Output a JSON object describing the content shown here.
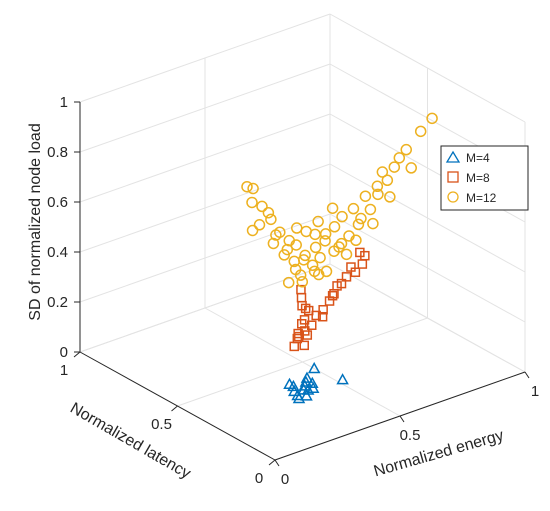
{
  "chart_data": {
    "type": "scatter",
    "xlabel": "Normalized energy",
    "ylabel": "Normalized latency",
    "zlabel": "SD of normalized node load",
    "xlim": [
      0,
      1
    ],
    "ylim": [
      0,
      1
    ],
    "zlim": [
      0,
      1
    ],
    "ticks": {
      "x": [
        "0",
        "0.5",
        "1"
      ],
      "y": [
        "0",
        "0.5",
        "1"
      ],
      "z": [
        "0",
        "0.2",
        "0.4",
        "0.6",
        "0.8",
        "1"
      ]
    },
    "grid": true,
    "legend_position": "right",
    "series": [
      {
        "name": "M=4",
        "marker": "triangle",
        "color": "#0072BD",
        "points": [
          [
            0.35,
            0.35,
            0.0
          ],
          [
            0.37,
            0.38,
            0.0
          ],
          [
            0.4,
            0.36,
            0.0
          ],
          [
            0.34,
            0.32,
            0.0
          ],
          [
            0.33,
            0.3,
            0.0
          ],
          [
            0.41,
            0.33,
            0.0
          ],
          [
            0.37,
            0.4,
            0.0
          ],
          [
            0.43,
            0.36,
            0.0
          ],
          [
            0.36,
            0.3,
            0.0
          ],
          [
            0.39,
            0.33,
            0.0
          ],
          [
            0.42,
            0.38,
            0.0
          ],
          [
            0.44,
            0.4,
            0.0
          ],
          [
            0.5,
            0.44,
            0.0
          ],
          [
            0.52,
            0.32,
            0.0
          ],
          [
            0.38,
            0.34,
            0.0
          ]
        ]
      },
      {
        "name": "M=8",
        "marker": "square",
        "color": "#D95319",
        "points": [
          [
            0.35,
            0.35,
            0.18
          ],
          [
            0.37,
            0.36,
            0.2
          ],
          [
            0.4,
            0.36,
            0.22
          ],
          [
            0.35,
            0.33,
            0.24
          ],
          [
            0.38,
            0.35,
            0.26
          ],
          [
            0.42,
            0.35,
            0.24
          ],
          [
            0.36,
            0.31,
            0.3
          ],
          [
            0.38,
            0.33,
            0.33
          ],
          [
            0.4,
            0.34,
            0.31
          ],
          [
            0.43,
            0.34,
            0.28
          ],
          [
            0.45,
            0.33,
            0.3
          ],
          [
            0.46,
            0.31,
            0.34
          ],
          [
            0.47,
            0.3,
            0.37
          ],
          [
            0.49,
            0.31,
            0.39
          ],
          [
            0.52,
            0.3,
            0.42
          ],
          [
            0.54,
            0.28,
            0.44
          ],
          [
            0.56,
            0.27,
            0.47
          ],
          [
            0.57,
            0.27,
            0.5
          ],
          [
            0.34,
            0.3,
            0.4
          ],
          [
            0.33,
            0.29,
            0.44
          ],
          [
            0.35,
            0.31,
            0.36
          ],
          [
            0.44,
            0.32,
            0.28
          ],
          [
            0.48,
            0.32,
            0.35
          ],
          [
            0.5,
            0.3,
            0.4
          ],
          [
            0.41,
            0.36,
            0.2
          ],
          [
            0.39,
            0.35,
            0.17
          ],
          [
            0.36,
            0.34,
            0.22
          ],
          [
            0.53,
            0.29,
            0.46
          ],
          [
            0.55,
            0.27,
            0.52
          ]
        ]
      },
      {
        "name": "M=12",
        "marker": "circle",
        "color": "#EDB120",
        "points": [
          [
            0.2,
            0.4,
            0.85
          ],
          [
            0.24,
            0.42,
            0.82
          ],
          [
            0.22,
            0.4,
            0.78
          ],
          [
            0.27,
            0.38,
            0.73
          ],
          [
            0.25,
            0.4,
            0.68
          ],
          [
            0.3,
            0.38,
            0.63
          ],
          [
            0.29,
            0.38,
            0.6
          ],
          [
            0.33,
            0.36,
            0.57
          ],
          [
            0.37,
            0.32,
            0.55
          ],
          [
            0.35,
            0.35,
            0.52
          ],
          [
            0.4,
            0.32,
            0.5
          ],
          [
            0.43,
            0.32,
            0.52
          ],
          [
            0.47,
            0.3,
            0.54
          ],
          [
            0.5,
            0.3,
            0.56
          ],
          [
            0.53,
            0.3,
            0.58
          ],
          [
            0.56,
            0.29,
            0.62
          ],
          [
            0.6,
            0.28,
            0.67
          ],
          [
            0.63,
            0.28,
            0.72
          ],
          [
            0.66,
            0.27,
            0.77
          ],
          [
            0.68,
            0.26,
            0.82
          ],
          [
            0.72,
            0.25,
            0.88
          ],
          [
            0.77,
            0.24,
            0.94
          ],
          [
            0.8,
            0.22,
            0.99
          ],
          [
            0.32,
            0.34,
            0.45
          ],
          [
            0.36,
            0.33,
            0.47
          ],
          [
            0.4,
            0.31,
            0.48
          ],
          [
            0.44,
            0.3,
            0.47
          ],
          [
            0.34,
            0.33,
            0.5
          ],
          [
            0.38,
            0.34,
            0.52
          ],
          [
            0.42,
            0.33,
            0.56
          ],
          [
            0.46,
            0.33,
            0.6
          ],
          [
            0.48,
            0.31,
            0.63
          ],
          [
            0.51,
            0.31,
            0.66
          ],
          [
            0.54,
            0.29,
            0.69
          ],
          [
            0.58,
            0.28,
            0.73
          ],
          [
            0.62,
            0.27,
            0.76
          ],
          [
            0.64,
            0.27,
            0.81
          ],
          [
            0.7,
            0.26,
            0.85
          ],
          [
            0.31,
            0.35,
            0.56
          ],
          [
            0.35,
            0.34,
            0.59
          ],
          [
            0.41,
            0.32,
            0.62
          ],
          [
            0.39,
            0.34,
            0.63
          ],
          [
            0.45,
            0.32,
            0.58
          ],
          [
            0.49,
            0.3,
            0.55
          ],
          [
            0.55,
            0.29,
            0.56
          ],
          [
            0.52,
            0.3,
            0.51
          ],
          [
            0.44,
            0.34,
            0.44
          ],
          [
            0.39,
            0.36,
            0.42
          ],
          [
            0.28,
            0.38,
            0.7
          ],
          [
            0.26,
            0.4,
            0.75
          ],
          [
            0.23,
            0.41,
            0.66
          ],
          [
            0.3,
            0.36,
            0.65
          ],
          [
            0.57,
            0.29,
            0.64
          ],
          [
            0.61,
            0.28,
            0.61
          ],
          [
            0.67,
            0.27,
            0.7
          ],
          [
            0.74,
            0.25,
            0.8
          ],
          [
            0.36,
            0.35,
            0.65
          ],
          [
            0.43,
            0.33,
            0.66
          ],
          [
            0.48,
            0.32,
            0.7
          ],
          [
            0.33,
            0.35,
            0.61
          ]
        ]
      }
    ]
  }
}
